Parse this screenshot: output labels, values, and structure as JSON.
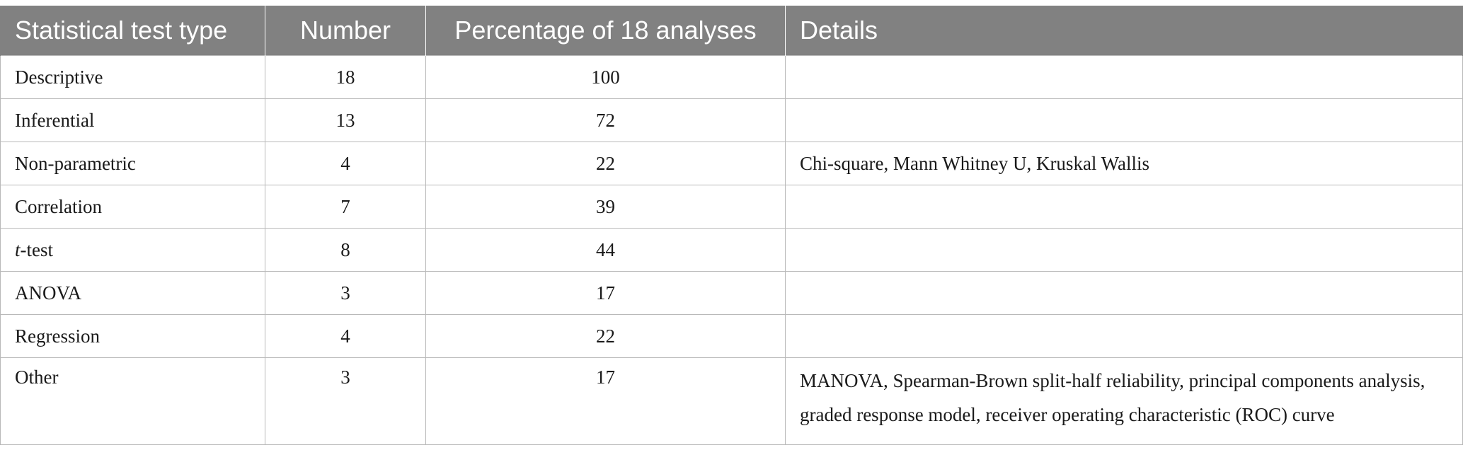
{
  "table": {
    "headers": {
      "type": "Statistical test type",
      "number": "Number",
      "percentage": "Percentage of 18 analyses",
      "details": "Details"
    },
    "rows": [
      {
        "type": "Descriptive",
        "number": "18",
        "percentage": "100",
        "details": ""
      },
      {
        "type": "Inferential",
        "number": "13",
        "percentage": "72",
        "details": ""
      },
      {
        "type": "Non-parametric",
        "number": "4",
        "percentage": "22",
        "details": "Chi-square, Mann Whitney U, Kruskal Wallis"
      },
      {
        "type": "Correlation",
        "number": "7",
        "percentage": "39",
        "details": ""
      },
      {
        "type_italic": "t",
        "type_rest": "-test",
        "number": "8",
        "percentage": "44",
        "details": ""
      },
      {
        "type": "ANOVA",
        "number": "3",
        "percentage": "17",
        "details": ""
      },
      {
        "type": "Regression",
        "number": "4",
        "percentage": "22",
        "details": ""
      },
      {
        "type": "Other",
        "number": "3",
        "percentage": "17",
        "details": "MANOVA, Spearman-Brown split-half reliability, principal components analysis, graded response model, receiver operating characteristic (ROC) curve"
      }
    ]
  }
}
